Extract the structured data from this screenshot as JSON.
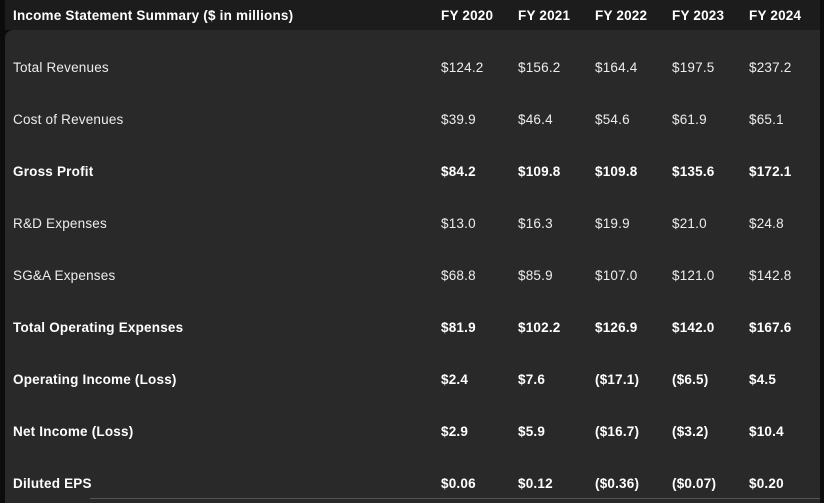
{
  "table": {
    "title": "Income Statement Summary ($ in millions)",
    "columns": [
      "FY 2020",
      "FY 2021",
      "FY 2022",
      "FY 2023",
      "FY 2024"
    ],
    "rows": [
      {
        "label": "Total Revenues",
        "bold": false,
        "values": [
          "$124.2",
          "$156.2",
          "$164.4",
          "$197.5",
          "$237.2"
        ]
      },
      {
        "label": "Cost of Revenues",
        "bold": false,
        "values": [
          "$39.9",
          "$46.4",
          "$54.6",
          "$61.9",
          "$65.1"
        ]
      },
      {
        "label": "Gross Profit",
        "bold": true,
        "values": [
          "$84.2",
          "$109.8",
          "$109.8",
          "$135.6",
          "$172.1"
        ]
      },
      {
        "label": "R&D Expenses",
        "bold": false,
        "values": [
          "$13.0",
          "$16.3",
          "$19.9",
          "$21.0",
          "$24.8"
        ]
      },
      {
        "label": "SG&A Expenses",
        "bold": false,
        "values": [
          "$68.8",
          "$85.9",
          "$107.0",
          "$121.0",
          "$142.8"
        ]
      },
      {
        "label": "Total Operating Expenses",
        "bold": true,
        "values": [
          "$81.9",
          "$102.2",
          "$126.9",
          "$142.0",
          "$167.6"
        ]
      },
      {
        "label": "Operating Income (Loss)",
        "bold": true,
        "values": [
          "$2.4",
          "$7.6",
          "($17.1)",
          "($6.5)",
          "$4.5"
        ]
      },
      {
        "label": "Net Income (Loss)",
        "bold": true,
        "values": [
          "$2.9",
          "$5.9",
          "($16.7)",
          "($3.2)",
          "$10.4"
        ]
      },
      {
        "label": "Diluted EPS",
        "bold": true,
        "values": [
          "$0.06",
          "$0.12",
          "($0.36)",
          "($0.07)",
          "$0.20"
        ]
      }
    ],
    "colors": {
      "page_bg": "#0c0c0c",
      "header_bg": "#1c1c1c",
      "body_bg": "#292929",
      "text_regular": "#ededed",
      "text_bold": "#ffffff",
      "divider": "#636363"
    }
  },
  "chart_data": {
    "type": "table",
    "title": "Income Statement Summary ($ in millions)",
    "categories": [
      "FY 2020",
      "FY 2021",
      "FY 2022",
      "FY 2023",
      "FY 2024"
    ],
    "series": [
      {
        "name": "Total Revenues",
        "values": [
          124.2,
          156.2,
          164.4,
          197.5,
          237.2
        ]
      },
      {
        "name": "Cost of Revenues",
        "values": [
          39.9,
          46.4,
          54.6,
          61.9,
          65.1
        ]
      },
      {
        "name": "Gross Profit",
        "values": [
          84.2,
          109.8,
          109.8,
          135.6,
          172.1
        ]
      },
      {
        "name": "R&D Expenses",
        "values": [
          13.0,
          16.3,
          19.9,
          21.0,
          24.8
        ]
      },
      {
        "name": "SG&A Expenses",
        "values": [
          68.8,
          85.9,
          107.0,
          121.0,
          142.8
        ]
      },
      {
        "name": "Total Operating Expenses",
        "values": [
          81.9,
          102.2,
          126.9,
          142.0,
          167.6
        ]
      },
      {
        "name": "Operating Income (Loss)",
        "values": [
          2.4,
          7.6,
          -17.1,
          -6.5,
          4.5
        ]
      },
      {
        "name": "Net Income (Loss)",
        "values": [
          2.9,
          5.9,
          -16.7,
          -3.2,
          10.4
        ]
      },
      {
        "name": "Diluted EPS",
        "values": [
          0.06,
          0.12,
          -0.36,
          -0.07,
          0.2
        ]
      }
    ]
  }
}
